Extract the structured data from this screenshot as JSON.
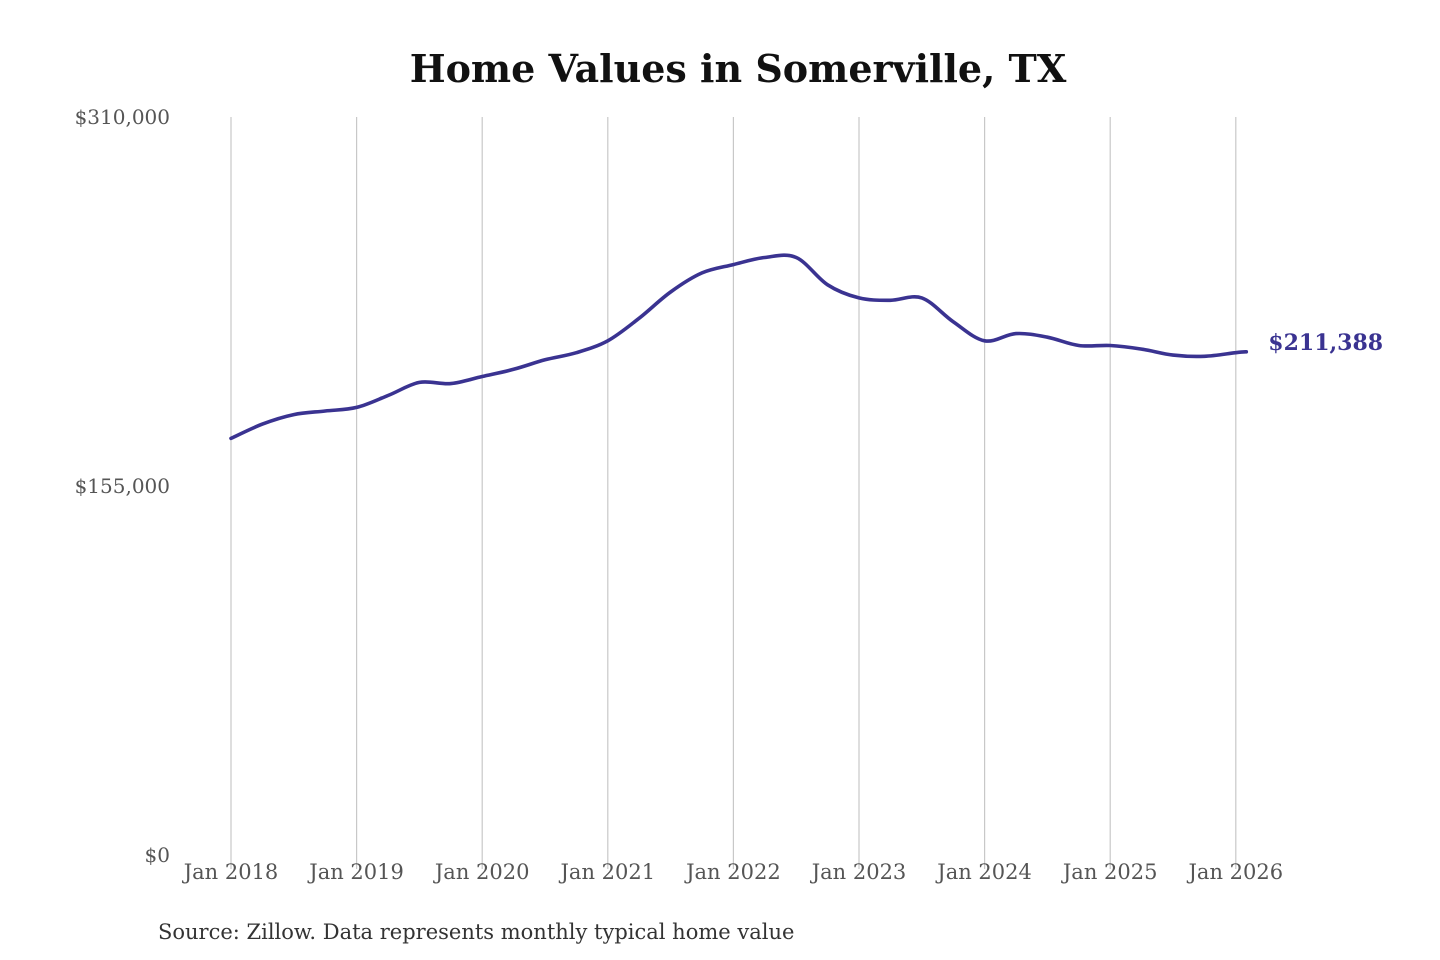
{
  "chart_data": {
    "type": "line",
    "title": "Home Values in Somerville, TX",
    "xlabel": "",
    "ylabel": "",
    "source": "Source: Zillow. Data represents monthly typical home value",
    "ylim": [
      0,
      310000
    ],
    "y_ticks": [
      {
        "value": 310000,
        "label": "$310,000"
      },
      {
        "value": 155000,
        "label": "$155,000"
      },
      {
        "value": 0,
        "label": "$0"
      }
    ],
    "x_ticks": [
      {
        "year": 2018,
        "label": "Jan 2018"
      },
      {
        "year": 2019,
        "label": "Jan 2019"
      },
      {
        "year": 2020,
        "label": "Jan 2020"
      },
      {
        "year": 2021,
        "label": "Jan 2021"
      },
      {
        "year": 2022,
        "label": "Jan 2022"
      },
      {
        "year": 2023,
        "label": "Jan 2023"
      },
      {
        "year": 2024,
        "label": "Jan 2024"
      },
      {
        "year": 2025,
        "label": "Jan 2025"
      },
      {
        "year": 2026,
        "label": "Jan 2026"
      }
    ],
    "grid": "vertical",
    "series": [
      {
        "name": "Typical home value",
        "color": "#3a3391",
        "end_label": "$211,388",
        "points": [
          {
            "date": "2018-01",
            "value": 175000
          },
          {
            "date": "2018-04",
            "value": 181000
          },
          {
            "date": "2018-07",
            "value": 185000
          },
          {
            "date": "2018-10",
            "value": 186500
          },
          {
            "date": "2019-01",
            "value": 188000
          },
          {
            "date": "2019-04",
            "value": 193000
          },
          {
            "date": "2019-07",
            "value": 198500
          },
          {
            "date": "2019-10",
            "value": 198000
          },
          {
            "date": "2020-01",
            "value": 201000
          },
          {
            "date": "2020-04",
            "value": 204000
          },
          {
            "date": "2020-07",
            "value": 208000
          },
          {
            "date": "2020-10",
            "value": 211000
          },
          {
            "date": "2021-01",
            "value": 216000
          },
          {
            "date": "2021-04",
            "value": 225500
          },
          {
            "date": "2021-07",
            "value": 236500
          },
          {
            "date": "2021-10",
            "value": 244500
          },
          {
            "date": "2022-01",
            "value": 248000
          },
          {
            "date": "2022-04",
            "value": 251000
          },
          {
            "date": "2022-07",
            "value": 251000
          },
          {
            "date": "2022-10",
            "value": 239500
          },
          {
            "date": "2023-01",
            "value": 234000
          },
          {
            "date": "2023-04",
            "value": 233000
          },
          {
            "date": "2023-07",
            "value": 234000
          },
          {
            "date": "2023-10",
            "value": 224000
          },
          {
            "date": "2024-01",
            "value": 216000
          },
          {
            "date": "2024-04",
            "value": 219000
          },
          {
            "date": "2024-07",
            "value": 217500
          },
          {
            "date": "2024-10",
            "value": 214000
          },
          {
            "date": "2025-01",
            "value": 214000
          },
          {
            "date": "2025-04",
            "value": 212500
          },
          {
            "date": "2025-07",
            "value": 210000
          },
          {
            "date": "2025-10",
            "value": 209500
          },
          {
            "date": "2026-01",
            "value": 211000
          },
          {
            "date": "2026-02",
            "value": 211388
          }
        ]
      }
    ]
  }
}
